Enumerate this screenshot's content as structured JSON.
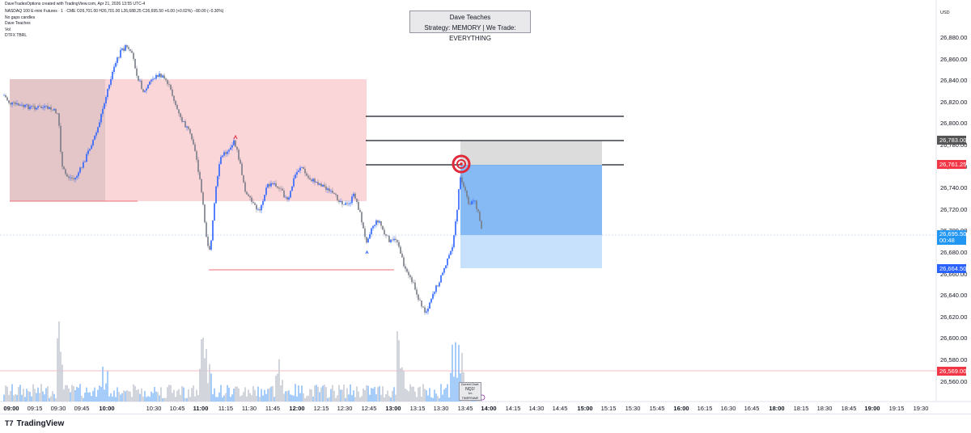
{
  "header": {
    "creator_line": "DaveTradesOptions created with TradingView.com, Apr 21, 2026 13:55 UTC-4",
    "symbol_line": "NASDAQ 100 E-mini Futures · 1 · CME  O26,701.00 H26,701.00 L26,688.25 C26,695.50 +6.00 (+0.02%) −80.00 (−0.30%)",
    "indicators": [
      "No gaps candles",
      "Dave Teaches",
      "Vol",
      "DTFX TBRL"
    ]
  },
  "annotation_box": {
    "title": "Dave Teaches",
    "subtitle": "Strategy: MEMORY | We Trade: EVERYTHING"
  },
  "price_axis": {
    "currency": "USD",
    "labels": [
      "26,880.00",
      "26,860.00",
      "26,840.00",
      "26,820.00",
      "26,800.00",
      "26,780.00",
      "26,760.00",
      "26,740.00",
      "26,720.00",
      "26,700.00",
      "26,680.00",
      "26,660.00",
      "26,640.00",
      "26,620.00",
      "26,600.00",
      "26,580.00",
      "26,560.00"
    ],
    "badges": {
      "tp_level": {
        "text": "26,783.00",
        "color": "#555555"
      },
      "entry_level": {
        "text": "26,761.25",
        "color": "#f23645"
      },
      "last_price": {
        "text": "26,695.50",
        "countdown": "00:48",
        "color": "#2196f3"
      },
      "stop_level": {
        "text": "26,664.50",
        "color": "#2962ff"
      },
      "low_level": {
        "text": "26,569.00",
        "color": "#f23645"
      }
    }
  },
  "time_axis": {
    "labels": [
      {
        "t": "09:00",
        "bold": true
      },
      {
        "t": "09:15"
      },
      {
        "t": "09:30"
      },
      {
        "t": "09:45"
      },
      {
        "t": "10:00",
        "bold": true
      },
      {
        "t": "10:30"
      },
      {
        "t": "10:45"
      },
      {
        "t": "11:00",
        "bold": true
      },
      {
        "t": "11:15"
      },
      {
        "t": "11:30"
      },
      {
        "t": "11:45"
      },
      {
        "t": "12:00",
        "bold": true
      },
      {
        "t": "12:15"
      },
      {
        "t": "12:30"
      },
      {
        "t": "12:45"
      },
      {
        "t": "13:00",
        "bold": true
      },
      {
        "t": "13:15"
      },
      {
        "t": "13:30"
      },
      {
        "t": "13:45"
      },
      {
        "t": "14:00",
        "bold": true
      },
      {
        "t": "14:15"
      },
      {
        "t": "14:30"
      },
      {
        "t": "14:45"
      },
      {
        "t": "15:00",
        "bold": true
      },
      {
        "t": "15:15"
      },
      {
        "t": "15:30"
      },
      {
        "t": "15:45"
      },
      {
        "t": "16:00",
        "bold": true
      },
      {
        "t": "16:15"
      },
      {
        "t": "16:30"
      },
      {
        "t": "16:45"
      },
      {
        "t": "18:00",
        "bold": true
      },
      {
        "t": "18:15"
      },
      {
        "t": "18:30"
      },
      {
        "t": "18:45"
      },
      {
        "t": "19:00",
        "bold": true
      },
      {
        "t": "19:15"
      },
      {
        "t": "19:30"
      }
    ]
  },
  "current_chart_box": {
    "line1": "Current Chart:",
    "line2": "NQ1!",
    "line3": "1m TIMEFRAME"
  },
  "footer": {
    "brand": "TradingView"
  },
  "colors": {
    "up": "#2962ff",
    "down": "#b2b5be",
    "zone": "#f9c9cd",
    "zone_dark": "#d9b3b6",
    "tp": "#d8d8d8",
    "sl": "#4f96f0",
    "sl_light": "#bcd9fb"
  }
}
